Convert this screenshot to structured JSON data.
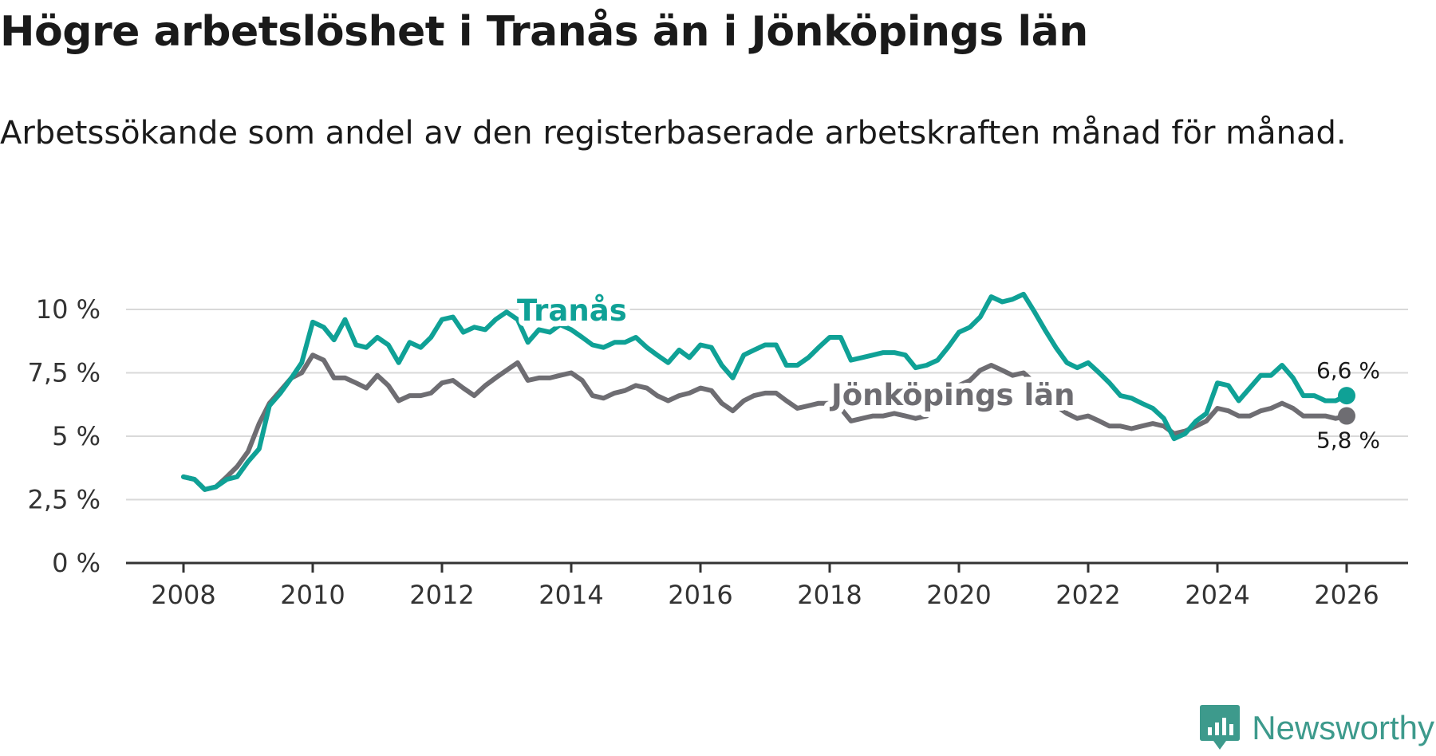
{
  "header": {
    "title": "Högre arbetslöshet i Tranås än i Jönköpings län",
    "subtitle": "Arbetssökande som andel av den registerbaserade arbetskraften månad för månad."
  },
  "brand": {
    "name": "Newsworthy",
    "icon": "newsworthy-logo-icon"
  },
  "colors": {
    "tranas": "#0fa196",
    "lan": "#6e6d72",
    "grid": "#d9d9d9",
    "axis": "#333333"
  },
  "chart_data": {
    "type": "line",
    "title": "Högre arbetslöshet i Tranås än i Jönköpings län",
    "xlabel": "",
    "ylabel": "",
    "ylim": [
      0,
      10
    ],
    "xlim": [
      2008,
      2026
    ],
    "x_ticks": [
      "2008",
      "2010",
      "2012",
      "2014",
      "2016",
      "2018",
      "2020",
      "2022",
      "2024",
      "2026"
    ],
    "y_ticks": [
      {
        "value": 0,
        "label": "0 %"
      },
      {
        "value": 2.5,
        "label": "2,5 %"
      },
      {
        "value": 5,
        "label": "5 %"
      },
      {
        "value": 7.5,
        "label": "7,5 %"
      },
      {
        "value": 10,
        "label": "10 %"
      }
    ],
    "grid": true,
    "series": [
      {
        "name": "Tranås",
        "color": "#0fa196",
        "end_label": "6,6 %",
        "points": [
          [
            2008.0,
            3.4
          ],
          [
            2008.17,
            3.3
          ],
          [
            2008.33,
            2.9
          ],
          [
            2008.5,
            3.0
          ],
          [
            2008.67,
            3.3
          ],
          [
            2008.83,
            3.4
          ],
          [
            2009.0,
            4.0
          ],
          [
            2009.17,
            4.5
          ],
          [
            2009.33,
            6.2
          ],
          [
            2009.5,
            6.7
          ],
          [
            2009.67,
            7.3
          ],
          [
            2009.83,
            7.9
          ],
          [
            2010.0,
            9.5
          ],
          [
            2010.17,
            9.3
          ],
          [
            2010.33,
            8.8
          ],
          [
            2010.5,
            9.6
          ],
          [
            2010.67,
            8.6
          ],
          [
            2010.83,
            8.5
          ],
          [
            2011.0,
            8.9
          ],
          [
            2011.17,
            8.6
          ],
          [
            2011.33,
            7.9
          ],
          [
            2011.5,
            8.7
          ],
          [
            2011.67,
            8.5
          ],
          [
            2011.83,
            8.9
          ],
          [
            2012.0,
            9.6
          ],
          [
            2012.17,
            9.7
          ],
          [
            2012.33,
            9.1
          ],
          [
            2012.5,
            9.3
          ],
          [
            2012.67,
            9.2
          ],
          [
            2012.83,
            9.6
          ],
          [
            2013.0,
            9.9
          ],
          [
            2013.17,
            9.6
          ],
          [
            2013.33,
            8.7
          ],
          [
            2013.5,
            9.2
          ],
          [
            2013.67,
            9.1
          ],
          [
            2013.83,
            9.4
          ],
          [
            2014.0,
            9.2
          ],
          [
            2014.17,
            8.9
          ],
          [
            2014.33,
            8.6
          ],
          [
            2014.5,
            8.5
          ],
          [
            2014.67,
            8.7
          ],
          [
            2014.83,
            8.7
          ],
          [
            2015.0,
            8.9
          ],
          [
            2015.17,
            8.5
          ],
          [
            2015.33,
            8.2
          ],
          [
            2015.5,
            7.9
          ],
          [
            2015.67,
            8.4
          ],
          [
            2015.83,
            8.1
          ],
          [
            2016.0,
            8.6
          ],
          [
            2016.17,
            8.5
          ],
          [
            2016.33,
            7.8
          ],
          [
            2016.5,
            7.3
          ],
          [
            2016.67,
            8.2
          ],
          [
            2016.83,
            8.4
          ],
          [
            2017.0,
            8.6
          ],
          [
            2017.17,
            8.6
          ],
          [
            2017.33,
            7.8
          ],
          [
            2017.5,
            7.8
          ],
          [
            2017.67,
            8.1
          ],
          [
            2017.83,
            8.5
          ],
          [
            2018.0,
            8.9
          ],
          [
            2018.17,
            8.9
          ],
          [
            2018.33,
            8.0
          ],
          [
            2018.5,
            8.1
          ],
          [
            2018.67,
            8.2
          ],
          [
            2018.83,
            8.3
          ],
          [
            2019.0,
            8.3
          ],
          [
            2019.17,
            8.2
          ],
          [
            2019.33,
            7.7
          ],
          [
            2019.5,
            7.8
          ],
          [
            2019.67,
            8.0
          ],
          [
            2019.83,
            8.5
          ],
          [
            2020.0,
            9.1
          ],
          [
            2020.17,
            9.3
          ],
          [
            2020.33,
            9.7
          ],
          [
            2020.5,
            10.5
          ],
          [
            2020.67,
            10.3
          ],
          [
            2020.83,
            10.4
          ],
          [
            2021.0,
            10.6
          ],
          [
            2021.17,
            9.9
          ],
          [
            2021.33,
            9.2
          ],
          [
            2021.5,
            8.5
          ],
          [
            2021.67,
            7.9
          ],
          [
            2021.83,
            7.7
          ],
          [
            2022.0,
            7.9
          ],
          [
            2022.17,
            7.5
          ],
          [
            2022.33,
            7.1
          ],
          [
            2022.5,
            6.6
          ],
          [
            2022.67,
            6.5
          ],
          [
            2022.83,
            6.3
          ],
          [
            2023.0,
            6.1
          ],
          [
            2023.17,
            5.7
          ],
          [
            2023.33,
            4.9
          ],
          [
            2023.5,
            5.1
          ],
          [
            2023.67,
            5.6
          ],
          [
            2023.83,
            5.9
          ],
          [
            2024.0,
            7.1
          ],
          [
            2024.17,
            7.0
          ],
          [
            2024.33,
            6.4
          ],
          [
            2024.5,
            6.9
          ],
          [
            2024.67,
            7.4
          ],
          [
            2024.83,
            7.4
          ],
          [
            2025.0,
            7.8
          ],
          [
            2025.17,
            7.3
          ],
          [
            2025.33,
            6.6
          ],
          [
            2025.5,
            6.6
          ],
          [
            2025.67,
            6.4
          ],
          [
            2025.83,
            6.4
          ],
          [
            2026.0,
            6.6
          ]
        ]
      },
      {
        "name": "Jönköpings län",
        "color": "#6e6d72",
        "end_label": "5,8 %",
        "points": [
          [
            2008.0,
            3.4
          ],
          [
            2008.17,
            3.3
          ],
          [
            2008.33,
            2.9
          ],
          [
            2008.5,
            3.0
          ],
          [
            2008.67,
            3.4
          ],
          [
            2008.83,
            3.8
          ],
          [
            2009.0,
            4.4
          ],
          [
            2009.17,
            5.5
          ],
          [
            2009.33,
            6.3
          ],
          [
            2009.5,
            6.8
          ],
          [
            2009.67,
            7.3
          ],
          [
            2009.83,
            7.5
          ],
          [
            2010.0,
            8.2
          ],
          [
            2010.17,
            8.0
          ],
          [
            2010.33,
            7.3
          ],
          [
            2010.5,
            7.3
          ],
          [
            2010.67,
            7.1
          ],
          [
            2010.83,
            6.9
          ],
          [
            2011.0,
            7.4
          ],
          [
            2011.17,
            7.0
          ],
          [
            2011.33,
            6.4
          ],
          [
            2011.5,
            6.6
          ],
          [
            2011.67,
            6.6
          ],
          [
            2011.83,
            6.7
          ],
          [
            2012.0,
            7.1
          ],
          [
            2012.17,
            7.2
          ],
          [
            2012.33,
            6.9
          ],
          [
            2012.5,
            6.6
          ],
          [
            2012.67,
            7.0
          ],
          [
            2012.83,
            7.3
          ],
          [
            2013.0,
            7.6
          ],
          [
            2013.17,
            7.9
          ],
          [
            2013.33,
            7.2
          ],
          [
            2013.5,
            7.3
          ],
          [
            2013.67,
            7.3
          ],
          [
            2013.83,
            7.4
          ],
          [
            2014.0,
            7.5
          ],
          [
            2014.17,
            7.2
          ],
          [
            2014.33,
            6.6
          ],
          [
            2014.5,
            6.5
          ],
          [
            2014.67,
            6.7
          ],
          [
            2014.83,
            6.8
          ],
          [
            2015.0,
            7.0
          ],
          [
            2015.17,
            6.9
          ],
          [
            2015.33,
            6.6
          ],
          [
            2015.5,
            6.4
          ],
          [
            2015.67,
            6.6
          ],
          [
            2015.83,
            6.7
          ],
          [
            2016.0,
            6.9
          ],
          [
            2016.17,
            6.8
          ],
          [
            2016.33,
            6.3
          ],
          [
            2016.5,
            6.0
          ],
          [
            2016.67,
            6.4
          ],
          [
            2016.83,
            6.6
          ],
          [
            2017.0,
            6.7
          ],
          [
            2017.17,
            6.7
          ],
          [
            2017.33,
            6.4
          ],
          [
            2017.5,
            6.1
          ],
          [
            2017.67,
            6.2
          ],
          [
            2017.83,
            6.3
          ],
          [
            2018.0,
            6.3
          ],
          [
            2018.17,
            6.1
          ],
          [
            2018.33,
            5.6
          ],
          [
            2018.5,
            5.7
          ],
          [
            2018.67,
            5.8
          ],
          [
            2018.83,
            5.8
          ],
          [
            2019.0,
            5.9
          ],
          [
            2019.17,
            5.8
          ],
          [
            2019.33,
            5.7
          ],
          [
            2019.5,
            5.8
          ],
          [
            2019.67,
            6.2
          ],
          [
            2019.83,
            6.8
          ],
          [
            2020.0,
            7.0
          ],
          [
            2020.17,
            7.2
          ],
          [
            2020.33,
            7.6
          ],
          [
            2020.5,
            7.8
          ],
          [
            2020.67,
            7.6
          ],
          [
            2020.83,
            7.4
          ],
          [
            2021.0,
            7.5
          ],
          [
            2021.17,
            7.1
          ],
          [
            2021.33,
            6.6
          ],
          [
            2021.5,
            6.2
          ],
          [
            2021.67,
            5.9
          ],
          [
            2021.83,
            5.7
          ],
          [
            2022.0,
            5.8
          ],
          [
            2022.17,
            5.6
          ],
          [
            2022.33,
            5.4
          ],
          [
            2022.5,
            5.4
          ],
          [
            2022.67,
            5.3
          ],
          [
            2022.83,
            5.4
          ],
          [
            2023.0,
            5.5
          ],
          [
            2023.17,
            5.4
          ],
          [
            2023.33,
            5.1
          ],
          [
            2023.5,
            5.2
          ],
          [
            2023.67,
            5.4
          ],
          [
            2023.83,
            5.6
          ],
          [
            2024.0,
            6.1
          ],
          [
            2024.17,
            6.0
          ],
          [
            2024.33,
            5.8
          ],
          [
            2024.5,
            5.8
          ],
          [
            2024.67,
            6.0
          ],
          [
            2024.83,
            6.1
          ],
          [
            2025.0,
            6.3
          ],
          [
            2025.17,
            6.1
          ],
          [
            2025.33,
            5.8
          ],
          [
            2025.5,
            5.8
          ],
          [
            2025.67,
            5.8
          ],
          [
            2025.83,
            5.7
          ],
          [
            2026.0,
            5.8
          ]
        ]
      }
    ]
  }
}
